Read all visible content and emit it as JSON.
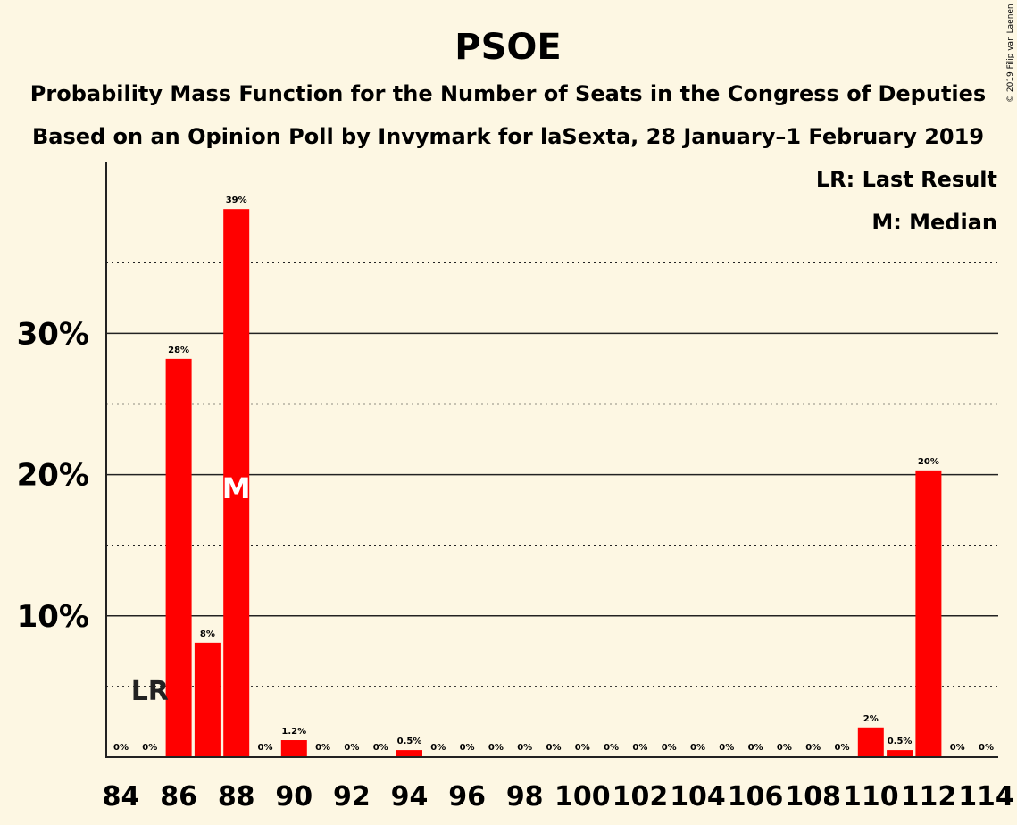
{
  "chart_data": {
    "type": "bar",
    "title": "PSOE",
    "subtitle_lines": [
      "Probability Mass Function for the Number of Seats in the Congress of Deputies",
      "Based on an Opinion Poll by Invymark for laSexta, 28 January–1 February 2019"
    ],
    "copyright": "© 2019 Filip van Laenen",
    "legend": [
      {
        "key": "lr",
        "text": "LR: Last Result"
      },
      {
        "key": "m",
        "text": "M: Median"
      }
    ],
    "legend_placement": "top-right",
    "grid": true,
    "ylim": [
      0,
      42
    ],
    "ytick_values": [
      10,
      20,
      30
    ],
    "ytick_labels": [
      "10%",
      "20%",
      "30%"
    ],
    "minor_gridlines": [
      5,
      15,
      25,
      35
    ],
    "xtick_labels": [
      "84",
      "86",
      "88",
      "90",
      "92",
      "94",
      "96",
      "98",
      "100",
      "102",
      "104",
      "106",
      "108",
      "110",
      "112",
      "114"
    ],
    "categories": [
      84,
      85,
      86,
      87,
      88,
      89,
      90,
      91,
      92,
      93,
      94,
      95,
      96,
      97,
      98,
      99,
      100,
      101,
      102,
      103,
      104,
      105,
      106,
      107,
      108,
      109,
      110,
      111,
      112,
      113,
      114
    ],
    "values": [
      0,
      0,
      28.2,
      8.1,
      38.8,
      0,
      1.2,
      0,
      0,
      0,
      0.5,
      0,
      0,
      0,
      0,
      0,
      0,
      0,
      0,
      0,
      0,
      0,
      0,
      0,
      0,
      0,
      2.1,
      0.5,
      20.3,
      0,
      0
    ],
    "value_labels": [
      "0%",
      "0%",
      "28%",
      "8%",
      "39%",
      "0%",
      "1.2%",
      "0%",
      "0%",
      "0%",
      "0.5%",
      "0%",
      "0%",
      "0%",
      "0%",
      "0%",
      "0%",
      "0%",
      "0%",
      "0%",
      "0%",
      "0%",
      "0%",
      "0%",
      "0%",
      "0%",
      "2%",
      "0.5%",
      "20%",
      "0%",
      "0%"
    ],
    "last_result": {
      "seat": 85,
      "label": "LR"
    },
    "median": {
      "seat": 88,
      "label": "M"
    },
    "bar_color": "#ff0000"
  }
}
